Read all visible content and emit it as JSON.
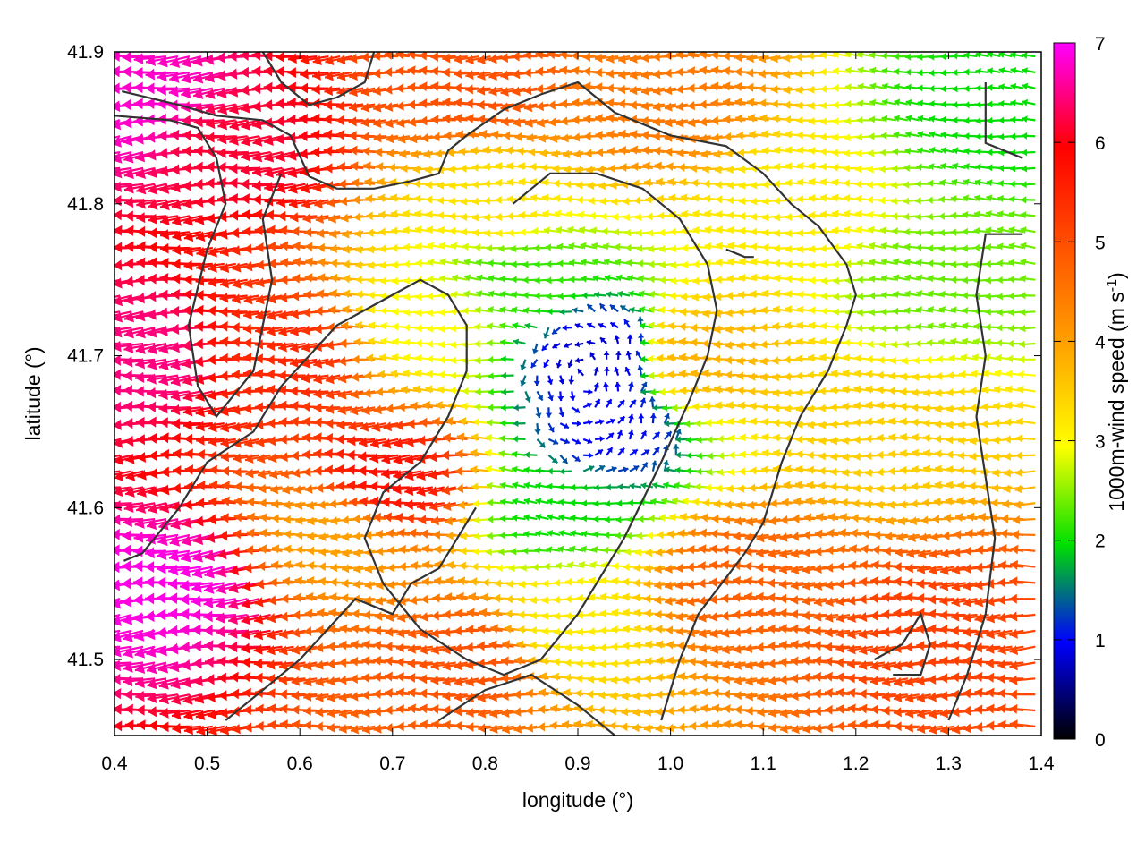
{
  "chart_data": {
    "type": "vector-field",
    "xlabel": "longitude (°)",
    "ylabel": "latitude (°)",
    "xlim": [
      0.4,
      1.4
    ],
    "ylim": [
      41.45,
      41.9
    ],
    "xticks": [
      "0.4",
      "0.5",
      "0.6",
      "0.7",
      "0.8",
      "0.9",
      "1.0",
      "1.1",
      "1.2",
      "1.3",
      "1.4"
    ],
    "yticks": [
      "41.5",
      "41.6",
      "41.7",
      "41.8",
      "41.9"
    ],
    "colorbar": {
      "label": "1000m-wind speed (m s",
      "label_superscript": "-1",
      "label_suffix": ")",
      "range": [
        0,
        7
      ],
      "ticks": [
        "0",
        "1",
        "2",
        "3",
        "4",
        "5",
        "6",
        "7"
      ],
      "palette": [
        "#000000",
        "#0000ff",
        "#00ff00",
        "#ffff00",
        "#ff8000",
        "#ff0000",
        "#ff00ff"
      ]
    },
    "vectors": [
      {
        "lon": 0.45,
        "lat": 41.87,
        "speed": 6.8
      },
      {
        "lon": 0.55,
        "lat": 41.84,
        "speed": 6.2
      },
      {
        "lon": 0.45,
        "lat": 41.7,
        "speed": 6.5
      },
      {
        "lon": 0.48,
        "lat": 41.55,
        "speed": 6.9
      },
      {
        "lon": 0.6,
        "lat": 41.7,
        "speed": 5.5
      },
      {
        "lon": 0.65,
        "lat": 41.58,
        "speed": 4.0
      },
      {
        "lon": 0.72,
        "lat": 41.62,
        "speed": 5.8
      },
      {
        "lon": 0.75,
        "lat": 41.72,
        "speed": 3.0
      },
      {
        "lon": 0.82,
        "lat": 41.8,
        "speed": 3.3
      },
      {
        "lon": 0.85,
        "lat": 41.75,
        "speed": 2.2
      },
      {
        "lon": 0.92,
        "lat": 41.7,
        "speed": 0.8
      },
      {
        "lon": 0.93,
        "lat": 41.65,
        "speed": 1.0
      },
      {
        "lon": 0.88,
        "lat": 41.6,
        "speed": 2.0
      },
      {
        "lon": 0.9,
        "lat": 41.52,
        "speed": 3.2
      },
      {
        "lon": 0.8,
        "lat": 41.5,
        "speed": 5.0
      },
      {
        "lon": 1.05,
        "lat": 41.7,
        "speed": 3.8
      },
      {
        "lon": 1.1,
        "lat": 41.55,
        "speed": 4.8
      },
      {
        "lon": 1.15,
        "lat": 41.8,
        "speed": 3.2
      },
      {
        "lon": 1.3,
        "lat": 41.75,
        "speed": 2.4
      },
      {
        "lon": 1.35,
        "lat": 41.86,
        "speed": 2.0
      },
      {
        "lon": 1.25,
        "lat": 41.65,
        "speed": 3.5
      },
      {
        "lon": 1.3,
        "lat": 41.52,
        "speed": 5.2
      },
      {
        "lon": 1.0,
        "lat": 41.87,
        "speed": 4.5
      },
      {
        "lon": 0.8,
        "lat": 41.88,
        "speed": 5.0
      }
    ],
    "contours": [
      [
        [
          0.408,
          41.874
        ],
        [
          0.47,
          41.865
        ],
        [
          0.51,
          41.858
        ],
        [
          0.56,
          41.855
        ],
        [
          0.59,
          41.845
        ],
        [
          0.61,
          41.818
        ],
        [
          0.64,
          41.81
        ],
        [
          0.68,
          41.81
        ],
        [
          0.72,
          41.815
        ],
        [
          0.75,
          41.82
        ],
        [
          0.76,
          41.835
        ],
        [
          0.78,
          41.845
        ],
        [
          0.82,
          41.862
        ],
        [
          0.86,
          41.872
        ],
        [
          0.9,
          41.88
        ],
        [
          0.94,
          41.86
        ],
        [
          1.0,
          41.845
        ],
        [
          1.06,
          41.838
        ],
        [
          1.1,
          41.82
        ],
        [
          1.13,
          41.8
        ],
        [
          1.16,
          41.785
        ],
        [
          1.19,
          41.76
        ],
        [
          1.2,
          41.74
        ],
        [
          1.19,
          41.72
        ],
        [
          1.17,
          41.69
        ],
        [
          1.14,
          41.66
        ],
        [
          1.12,
          41.63
        ],
        [
          1.1,
          41.59
        ],
        [
          1.08,
          41.57
        ],
        [
          1.03,
          41.53
        ],
        [
          1.01,
          41.5
        ],
        [
          0.99,
          41.46
        ]
      ],
      [
        [
          0.58,
          41.82
        ],
        [
          0.56,
          41.79
        ],
        [
          0.57,
          41.75
        ],
        [
          0.56,
          41.72
        ],
        [
          0.55,
          41.69
        ],
        [
          0.51,
          41.66
        ],
        [
          0.49,
          41.68
        ],
        [
          0.48,
          41.72
        ],
        [
          0.5,
          41.77
        ],
        [
          0.52,
          41.8
        ],
        [
          0.51,
          41.83
        ],
        [
          0.49,
          41.85
        ],
        [
          0.46,
          41.855
        ],
        [
          0.4,
          41.858
        ]
      ],
      [
        [
          0.41,
          41.565
        ],
        [
          0.43,
          41.57
        ],
        [
          0.47,
          41.6
        ],
        [
          0.5,
          41.63
        ],
        [
          0.55,
          41.65
        ],
        [
          0.58,
          41.68
        ],
        [
          0.61,
          41.7
        ],
        [
          0.64,
          41.72
        ],
        [
          0.67,
          41.73
        ],
        [
          0.7,
          41.74
        ],
        [
          0.73,
          41.75
        ],
        [
          0.76,
          41.74
        ],
        [
          0.78,
          41.72
        ],
        [
          0.78,
          41.69
        ],
        [
          0.76,
          41.66
        ],
        [
          0.73,
          41.63
        ],
        [
          0.69,
          41.61
        ],
        [
          0.67,
          41.58
        ],
        [
          0.69,
          41.55
        ],
        [
          0.73,
          41.52
        ],
        [
          0.78,
          41.5
        ],
        [
          0.82,
          41.49
        ],
        [
          0.86,
          41.5
        ],
        [
          0.9,
          41.53
        ],
        [
          0.95,
          41.58
        ],
        [
          0.99,
          41.63
        ],
        [
          1.02,
          41.67
        ],
        [
          1.04,
          41.7
        ],
        [
          1.05,
          41.73
        ],
        [
          1.04,
          41.76
        ],
        [
          1.01,
          41.79
        ],
        [
          0.97,
          41.81
        ],
        [
          0.92,
          41.82
        ],
        [
          0.87,
          41.82
        ],
        [
          0.83,
          41.8
        ]
      ],
      [
        [
          0.75,
          41.46
        ],
        [
          0.8,
          41.48
        ],
        [
          0.85,
          41.49
        ],
        [
          0.9,
          41.47
        ],
        [
          0.96,
          41.44
        ]
      ],
      [
        [
          0.52,
          41.46
        ],
        [
          0.56,
          41.48
        ],
        [
          0.6,
          41.5
        ],
        [
          0.63,
          41.52
        ],
        [
          0.66,
          41.54
        ],
        [
          0.7,
          41.53
        ],
        [
          0.72,
          41.55
        ],
        [
          0.75,
          41.56
        ],
        [
          0.77,
          41.58
        ],
        [
          0.79,
          41.6
        ]
      ],
      [
        [
          1.22,
          41.5
        ],
        [
          1.25,
          41.51
        ],
        [
          1.27,
          41.53
        ],
        [
          1.28,
          41.51
        ],
        [
          1.27,
          41.49
        ],
        [
          1.24,
          41.49
        ]
      ],
      [
        [
          1.3,
          41.46
        ],
        [
          1.32,
          41.49
        ],
        [
          1.34,
          41.53
        ],
        [
          1.35,
          41.58
        ],
        [
          1.34,
          41.62
        ],
        [
          1.33,
          41.66
        ],
        [
          1.34,
          41.7
        ],
        [
          1.33,
          41.74
        ],
        [
          1.34,
          41.78
        ],
        [
          1.38,
          41.78
        ]
      ],
      [
        [
          1.34,
          41.88
        ],
        [
          1.34,
          41.84
        ],
        [
          1.38,
          41.83
        ]
      ],
      [
        [
          0.56,
          41.9
        ],
        [
          0.58,
          41.88
        ],
        [
          0.61,
          41.865
        ],
        [
          0.64,
          41.87
        ],
        [
          0.67,
          41.88
        ],
        [
          0.68,
          41.9
        ]
      ],
      [
        [
          1.06,
          41.77
        ],
        [
          1.08,
          41.765
        ],
        [
          1.09,
          41.765
        ]
      ]
    ]
  }
}
